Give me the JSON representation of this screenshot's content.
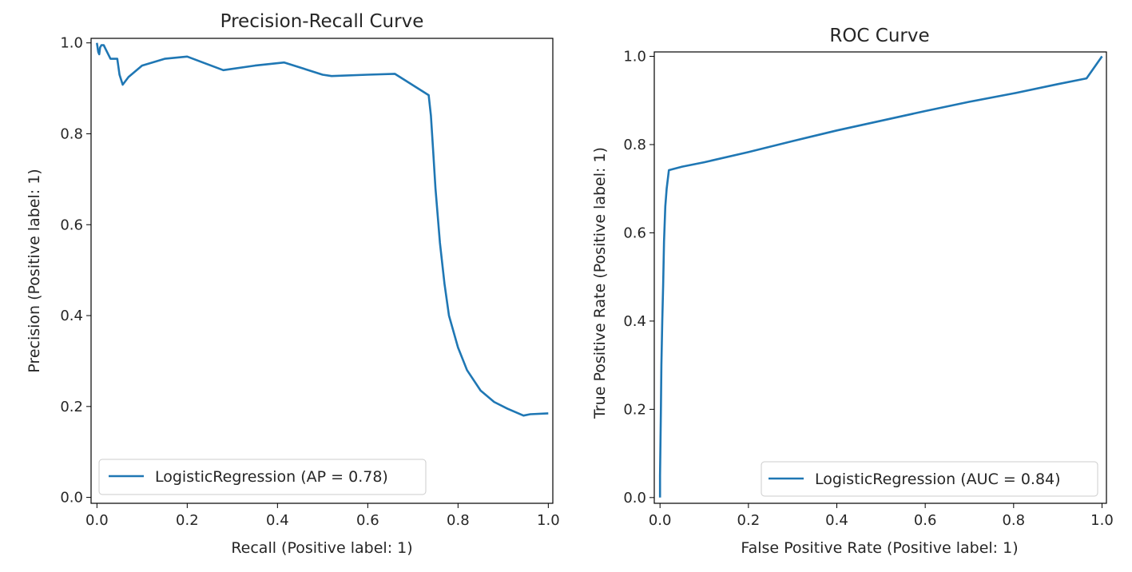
{
  "chart_data": [
    {
      "type": "line",
      "title": "Precision-Recall Curve",
      "xlabel": "Recall (Positive label: 1)",
      "ylabel": "Precision (Positive label: 1)",
      "xlim": [
        -0.013,
        1.01
      ],
      "ylim": [
        -0.013,
        1.01
      ],
      "xticks": [
        "0.0",
        "0.2",
        "0.4",
        "0.6",
        "0.8",
        "1.0"
      ],
      "yticks": [
        "0.0",
        "0.2",
        "0.4",
        "0.6",
        "0.8",
        "1.0"
      ],
      "legend_position": "lower-left",
      "series": [
        {
          "name": "LogisticRegression (AP = 0.78)",
          "color": "#1f77b4",
          "x": [
            0.0,
            0.003,
            0.005,
            0.007,
            0.01,
            0.015,
            0.02,
            0.03,
            0.04,
            0.045,
            0.05,
            0.057,
            0.07,
            0.1,
            0.15,
            0.2,
            0.28,
            0.35,
            0.415,
            0.5,
            0.52,
            0.6,
            0.66,
            0.735,
            0.74,
            0.745,
            0.75,
            0.755,
            0.76,
            0.77,
            0.78,
            0.8,
            0.82,
            0.85,
            0.88,
            0.91,
            0.945,
            0.96,
            1.0
          ],
          "y": [
            1.0,
            0.98,
            0.975,
            0.99,
            0.995,
            0.995,
            0.985,
            0.965,
            0.965,
            0.965,
            0.93,
            0.908,
            0.925,
            0.95,
            0.965,
            0.97,
            0.94,
            0.95,
            0.957,
            0.93,
            0.927,
            0.93,
            0.932,
            0.885,
            0.84,
            0.76,
            0.68,
            0.62,
            0.56,
            0.47,
            0.4,
            0.33,
            0.28,
            0.235,
            0.21,
            0.195,
            0.18,
            0.183,
            0.185
          ]
        }
      ]
    },
    {
      "type": "line",
      "title": "ROC Curve",
      "xlabel": "False Positive Rate (Positive label: 1)",
      "ylabel": "True Positive Rate (Positive label: 1)",
      "xlim": [
        -0.013,
        1.01
      ],
      "ylim": [
        -0.013,
        1.01
      ],
      "xticks": [
        "0.0",
        "0.2",
        "0.4",
        "0.6",
        "0.8",
        "1.0"
      ],
      "yticks": [
        "0.0",
        "0.2",
        "0.4",
        "0.6",
        "0.8",
        "1.0"
      ],
      "legend_position": "lower-right",
      "series": [
        {
          "name": "LogisticRegression (AUC = 0.84)",
          "color": "#1f77b4",
          "x": [
            0.0,
            0.0,
            0.002,
            0.003,
            0.005,
            0.007,
            0.009,
            0.012,
            0.015,
            0.02,
            0.05,
            0.1,
            0.2,
            0.3,
            0.4,
            0.5,
            0.6,
            0.7,
            0.8,
            0.9,
            0.965,
            1.0
          ],
          "y": [
            0.0,
            0.05,
            0.2,
            0.3,
            0.4,
            0.48,
            0.58,
            0.66,
            0.7,
            0.742,
            0.75,
            0.76,
            0.783,
            0.808,
            0.832,
            0.854,
            0.876,
            0.897,
            0.916,
            0.937,
            0.95,
            1.0
          ]
        }
      ]
    }
  ]
}
